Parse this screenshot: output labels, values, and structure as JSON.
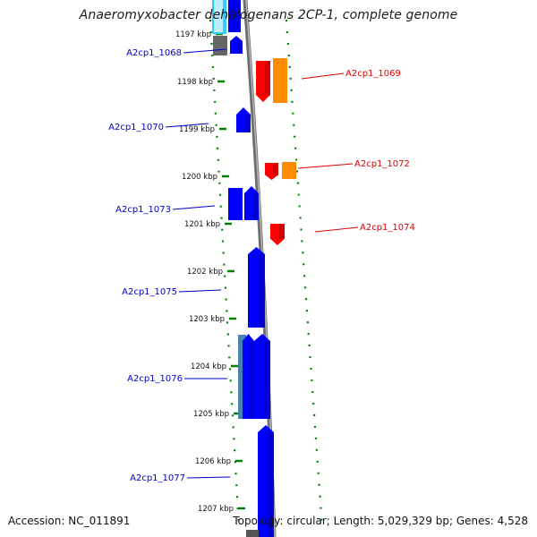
{
  "header": {
    "title": "Anaeromyxobacter dehalogenans 2CP-1, complete genome"
  },
  "footer": {
    "accession": "Accession: NC_011891",
    "summary": "Topology: circular; Length: 5,029,329 bp; Genes: 4,528"
  },
  "colors": {
    "forward_gene": "#ff0000",
    "forward_cds_alt": "#ff8c00",
    "reverse_gene": "#0000ff",
    "other_feature": "#555555",
    "light_feature": "#33ccff",
    "teal_feature": "#4682b4",
    "backbone": "#888888",
    "ruler_ticks": "#008000",
    "forward_label": "#dd0000",
    "reverse_label": "#0000cc"
  },
  "ruler": {
    "ticks": [
      "1197 kbp",
      "1198 kbp",
      "1199 kbp",
      "1200 kbp",
      "1201 kbp",
      "1202 kbp",
      "1203 kbp",
      "1204 kbp",
      "1205 kbp",
      "1206 kbp",
      "1207 kbp"
    ]
  },
  "genes": [
    {
      "id": "A2cp1_1068",
      "strand": "reverse"
    },
    {
      "id": "A2cp1_1069",
      "strand": "forward"
    },
    {
      "id": "A2cp1_1070",
      "strand": "reverse"
    },
    {
      "id": "A2cp1_1072",
      "strand": "forward"
    },
    {
      "id": "A2cp1_1073",
      "strand": "reverse"
    },
    {
      "id": "A2cp1_1074",
      "strand": "forward"
    },
    {
      "id": "A2cp1_1075",
      "strand": "reverse"
    },
    {
      "id": "A2cp1_1076",
      "strand": "reverse"
    },
    {
      "id": "A2cp1_1077",
      "strand": "reverse"
    }
  ]
}
